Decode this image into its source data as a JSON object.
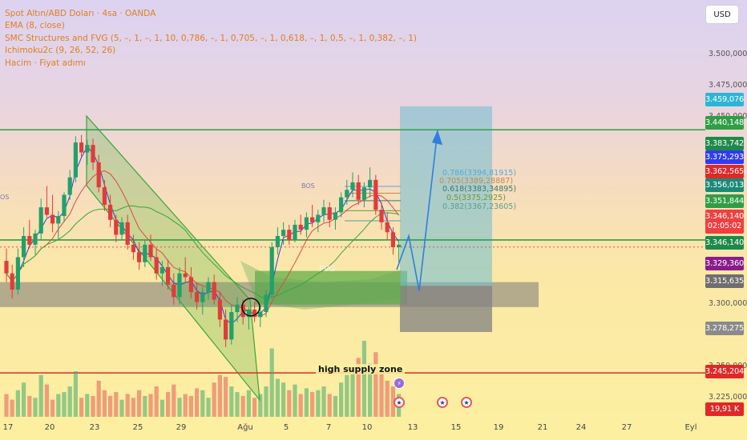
{
  "header": {
    "symbol_line": "Spot Altın/ABD Doları · 4sa · OANDA",
    "indicators": [
      "EMA (8, close)",
      "SMC Structures and FVG (5, –, 1, –, 1, 10, 0,786, –, 1, 0,705, –, 1, 0,618, –, 1, 0,5, –, 1, 0,382, –, 1)",
      "Ichimoku2c (9, 26, 52, 26)",
      "Hacim · Fiyat adımı"
    ],
    "currency_button": "USD"
  },
  "chart_data": {
    "type": "candlestick",
    "instrument": "Spot Altın/ABD Doları",
    "timeframe": "4sa",
    "source": "OANDA",
    "price_axis": {
      "min": 3210,
      "max": 3525,
      "ticks": [
        "3.500,000",
        "3.475,000",
        "3.450,000",
        "3.300,000",
        "3.250,000",
        "3.225,000"
      ]
    },
    "x_axis": {
      "labels": [
        "17",
        "20",
        "23",
        "25",
        "29",
        "Ağu",
        "5",
        "7",
        "10",
        "13",
        "15",
        "19",
        "21",
        "24",
        "27",
        "Eyl"
      ]
    },
    "price_tags": [
      {
        "label": "3.459,076",
        "color": "#2cb5d6",
        "price": 3459.076
      },
      {
        "label": "3.440,148",
        "color": "#2f9e44",
        "price": 3440.148
      },
      {
        "label": "3.383,742",
        "color": "#1e8a4a",
        "price": 3383.742
      },
      {
        "label": "3.375,293",
        "color": "#2f3cf0",
        "price": 3375.293
      },
      {
        "label": "3.362,565",
        "color": "#e02828",
        "price": 3362.565
      },
      {
        "label": "3.356,013",
        "color": "#1a8a78",
        "price": 3356.013
      },
      {
        "label": "3.351,844",
        "color": "#2f9e44",
        "price": 3351.844
      },
      {
        "label": "3.346,140",
        "sublabel": "02:05:02",
        "color": "#ee4040",
        "price": 3346.14
      },
      {
        "label": "3.346,140",
        "color": "#1e8a4a",
        "price": 3346.14
      },
      {
        "label": "3.329,360",
        "color": "#8a1c8a",
        "price": 3329.36
      },
      {
        "label": "3.315,635",
        "color": "#6e6e6e",
        "price": 3315.635
      },
      {
        "label": "3.278,275",
        "color": "#8a8a8a",
        "price": 3278.275
      },
      {
        "label": "3.245,204",
        "color": "#e02828",
        "price": 3245.204
      },
      {
        "label": "19,91 K",
        "color": "#e02828",
        "price": 3215
      }
    ],
    "horizontal_levels": [
      {
        "price": 3440.148,
        "color": "#2f9e44"
      },
      {
        "price": 3351.844,
        "color": "#2f9e44"
      },
      {
        "price": 3245.204,
        "color": "#e02828"
      }
    ],
    "fib_levels": [
      {
        "label": "0.786(3394,81915)",
        "price": 3394.8,
        "color": "#58a8d8"
      },
      {
        "label": "0.705(3389,28887)",
        "price": 3389.3,
        "color": "#c08a50"
      },
      {
        "label": "0.618(3383,34895)",
        "price": 3383.3,
        "color": "#3a7a6a"
      },
      {
        "label": "0.5(3375,2925)",
        "price": 3375.3,
        "color": "#6a9a3a"
      },
      {
        "label": "0.382(3367,23605)",
        "price": 3367.2,
        "color": "#5aa08a"
      }
    ],
    "zones": {
      "fvg_label": "FVG",
      "fvg_range": [
        3300,
        3327
      ],
      "supply_zone_label": "high supply zone",
      "supply_zone_price": 3245.204,
      "demand_range": [
        3298,
        3318
      ]
    },
    "annotations": [
      "BOS",
      "OS"
    ],
    "projection_path": [
      3328,
      3355,
      3311,
      3440
    ],
    "ohlc": [
      [
        3335,
        3345,
        3318,
        3325
      ],
      [
        3325,
        3332,
        3305,
        3312
      ],
      [
        3312,
        3345,
        3308,
        3338
      ],
      [
        3338,
        3362,
        3330,
        3355
      ],
      [
        3355,
        3368,
        3345,
        3348
      ],
      [
        3348,
        3360,
        3340,
        3357
      ],
      [
        3357,
        3385,
        3352,
        3378
      ],
      [
        3378,
        3395,
        3370,
        3372
      ],
      [
        3372,
        3388,
        3358,
        3365
      ],
      [
        3365,
        3375,
        3352,
        3371
      ],
      [
        3371,
        3390,
        3366,
        3388
      ],
      [
        3388,
        3408,
        3384,
        3402
      ],
      [
        3402,
        3435,
        3398,
        3430
      ],
      [
        3430,
        3436,
        3418,
        3422
      ],
      [
        3422,
        3432,
        3412,
        3428
      ],
      [
        3428,
        3433,
        3408,
        3414
      ],
      [
        3414,
        3420,
        3390,
        3394
      ],
      [
        3394,
        3400,
        3375,
        3380
      ],
      [
        3380,
        3388,
        3362,
        3368
      ],
      [
        3368,
        3372,
        3350,
        3356
      ],
      [
        3356,
        3370,
        3352,
        3366
      ],
      [
        3366,
        3372,
        3344,
        3348
      ],
      [
        3348,
        3356,
        3336,
        3342
      ],
      [
        3342,
        3350,
        3328,
        3334
      ],
      [
        3334,
        3352,
        3330,
        3348
      ],
      [
        3348,
        3356,
        3335,
        3338
      ],
      [
        3338,
        3345,
        3320,
        3325
      ],
      [
        3325,
        3335,
        3315,
        3330
      ],
      [
        3330,
        3336,
        3312,
        3316
      ],
      [
        3316,
        3325,
        3300,
        3306
      ],
      [
        3306,
        3330,
        3300,
        3325
      ],
      [
        3325,
        3338,
        3318,
        3322
      ],
      [
        3322,
        3330,
        3305,
        3310
      ],
      [
        3310,
        3318,
        3296,
        3302
      ],
      [
        3302,
        3314,
        3292,
        3310
      ],
      [
        3310,
        3322,
        3304,
        3318
      ],
      [
        3318,
        3324,
        3300,
        3304
      ],
      [
        3304,
        3310,
        3282,
        3288
      ],
      [
        3288,
        3296,
        3266,
        3272
      ],
      [
        3272,
        3300,
        3268,
        3294
      ],
      [
        3294,
        3306,
        3286,
        3300
      ],
      [
        3300,
        3304,
        3284,
        3290
      ],
      [
        3290,
        3298,
        3280,
        3296
      ],
      [
        3296,
        3302,
        3286,
        3290
      ],
      [
        3290,
        3300,
        3282,
        3294
      ],
      [
        3294,
        3312,
        3290,
        3308
      ],
      [
        3308,
        3350,
        3305,
        3346
      ],
      [
        3346,
        3362,
        3340,
        3355
      ],
      [
        3355,
        3366,
        3348,
        3360
      ],
      [
        3360,
        3364,
        3348,
        3352
      ],
      [
        3352,
        3368,
        3350,
        3364
      ],
      [
        3364,
        3372,
        3356,
        3360
      ],
      [
        3360,
        3374,
        3354,
        3370
      ],
      [
        3370,
        3380,
        3362,
        3366
      ],
      [
        3366,
        3376,
        3358,
        3372
      ],
      [
        3372,
        3384,
        3366,
        3378
      ],
      [
        3378,
        3382,
        3362,
        3368
      ],
      [
        3368,
        3378,
        3360,
        3374
      ],
      [
        3374,
        3390,
        3370,
        3386
      ],
      [
        3386,
        3400,
        3380,
        3392
      ],
      [
        3392,
        3406,
        3386,
        3398
      ],
      [
        3398,
        3404,
        3380,
        3384
      ],
      [
        3384,
        3398,
        3378,
        3394
      ],
      [
        3394,
        3410,
        3386,
        3400
      ],
      [
        3400,
        3404,
        3372,
        3376
      ],
      [
        3376,
        3382,
        3360,
        3366
      ],
      [
        3366,
        3374,
        3352,
        3358
      ],
      [
        3358,
        3362,
        3340,
        3346
      ],
      [
        3346,
        3352,
        3334,
        3348
      ]
    ],
    "volume": [
      12,
      9,
      14,
      18,
      11,
      10,
      22,
      17,
      9,
      12,
      13,
      16,
      24,
      10,
      12,
      11,
      19,
      14,
      11,
      13,
      9,
      12,
      10,
      14,
      11,
      12,
      16,
      9,
      13,
      17,
      10,
      12,
      11,
      15,
      14,
      10,
      18,
      22,
      21,
      16,
      13,
      11,
      14,
      10,
      12,
      16,
      36,
      20,
      18,
      14,
      17,
      12,
      15,
      13,
      14,
      16,
      12,
      11,
      18,
      22,
      26,
      31,
      40,
      28,
      34,
      24,
      19,
      16,
      12
    ]
  },
  "events": [
    {
      "kind": "bolt"
    },
    {
      "kind": "flag"
    },
    {
      "kind": "flag"
    },
    {
      "kind": "flag"
    }
  ]
}
